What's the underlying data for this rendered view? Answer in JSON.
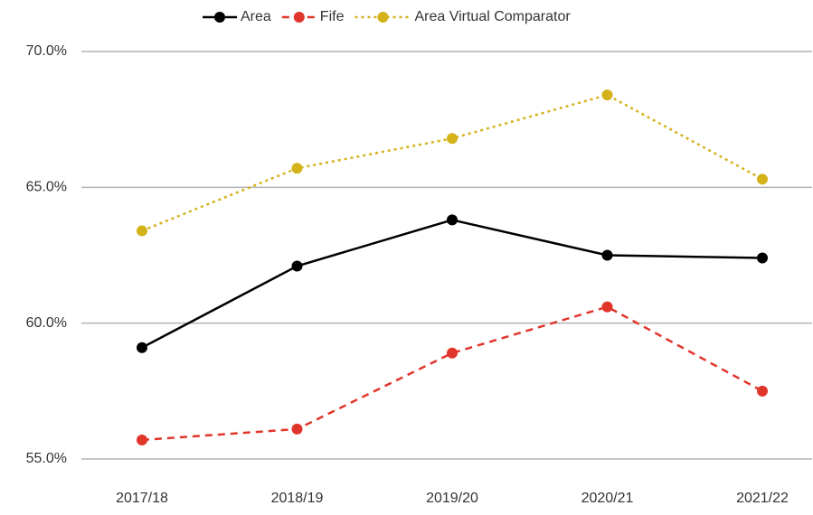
{
  "chart_data": {
    "type": "line",
    "categories": [
      "2017/18",
      "2018/19",
      "2019/20",
      "2020/21",
      "2021/22"
    ],
    "series": [
      {
        "name": "Area",
        "color": "#000000",
        "line_style": "solid",
        "values": [
          59.1,
          62.1,
          63.8,
          62.5,
          62.4
        ]
      },
      {
        "name": "Fife",
        "color": "#e0352b",
        "line_style": "dashed",
        "values": [
          55.7,
          56.1,
          58.9,
          60.6,
          57.5
        ]
      },
      {
        "name": "Area Virtual Comparator",
        "color": "#d4b21a",
        "line_style": "dotted",
        "values": [
          63.4,
          65.7,
          66.8,
          68.4,
          65.3
        ]
      }
    ],
    "ylim": [
      55,
      70
    ],
    "yticks": [
      {
        "value": 55,
        "label": "55.0%"
      },
      {
        "value": 60,
        "label": "60.0%"
      },
      {
        "value": 65,
        "label": "65.0%"
      },
      {
        "value": 70,
        "label": "70.0%"
      }
    ],
    "grid": true,
    "legend": "top"
  }
}
